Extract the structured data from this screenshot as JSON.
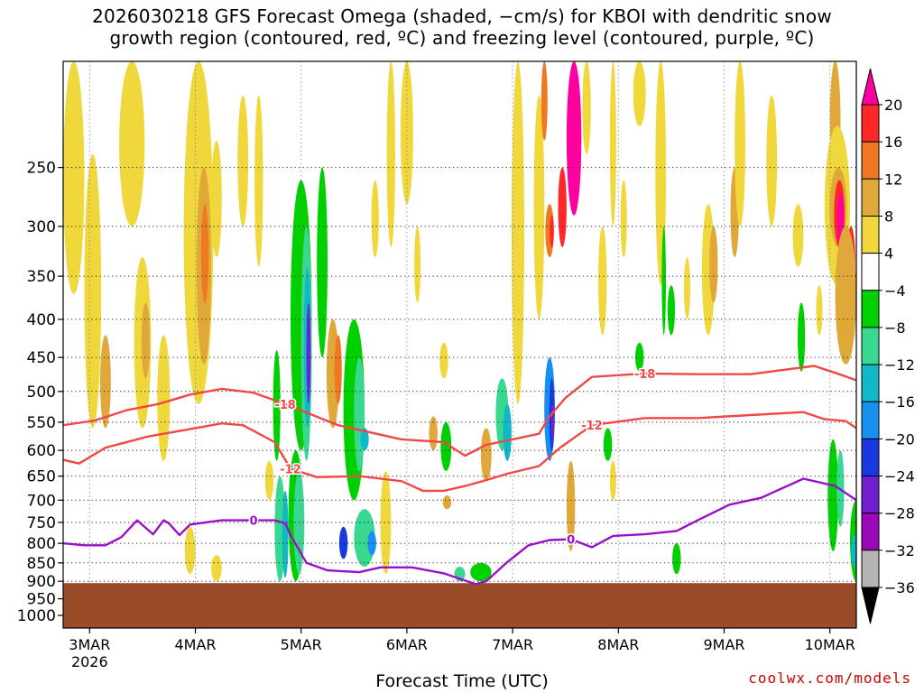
{
  "title": {
    "line1": "2026030218 GFS Forecast Omega (shaded, −cm/s) for KBOI with dendritic snow",
    "line2": "growth region (contoured, red, ºC) and freezing level (contoured, purple, ºC)"
  },
  "xlabel": "Forecast Time (UTC)",
  "credit": "coolwx.com/models",
  "chart_data": {
    "type": "heatmap",
    "y_axis": {
      "ticks": [
        250,
        300,
        350,
        400,
        450,
        500,
        550,
        600,
        650,
        700,
        750,
        800,
        850,
        900,
        950,
        1000
      ],
      "range": [
        180,
        1040
      ],
      "scale": "log"
    },
    "x_axis": {
      "ticks": [
        "3MAR",
        "4MAR",
        "5MAR",
        "6MAR",
        "7MAR",
        "8MAR",
        "9MAR",
        "10MAR"
      ],
      "tick_values": [
        0.25,
        1.25,
        2.25,
        3.25,
        4.25,
        5.25,
        6.25,
        7.25
      ],
      "year_label": "2026",
      "range": [
        0,
        7.5
      ]
    },
    "grid": true,
    "colorbar": {
      "ticks": [
        "20",
        "16",
        "12",
        "8",
        "4",
        "−4",
        "−8",
        "−12",
        "−16",
        "−20",
        "−24",
        "−28",
        "−32",
        "−36"
      ],
      "colors": [
        "#ff00a0",
        "#ff2828",
        "#f07820",
        "#e0a838",
        "#f0d83c",
        "#ffffff",
        "#00d000",
        "#38d890",
        "#10b8c8",
        "#1890f0",
        "#1838e0",
        "#7020d0",
        "#9a08b8",
        "#b4b4b4",
        "#000000"
      ]
    },
    "contours": {
      "dgz_upper_minus18": {
        "label": "-18",
        "color": "#f04848",
        "points": [
          [
            0.0,
            555
          ],
          [
            0.3,
            547
          ],
          [
            0.6,
            530
          ],
          [
            0.9,
            520
          ],
          [
            1.2,
            505
          ],
          [
            1.5,
            496
          ],
          [
            1.8,
            502
          ],
          [
            2.1,
            520
          ],
          [
            2.6,
            555
          ],
          [
            3.2,
            580
          ],
          [
            3.6,
            585
          ],
          [
            3.8,
            610
          ],
          [
            4.0,
            590
          ],
          [
            4.3,
            578
          ],
          [
            4.5,
            570
          ],
          [
            4.6,
            540
          ],
          [
            4.75,
            510
          ],
          [
            5.0,
            478
          ],
          [
            5.5,
            473
          ],
          [
            6.0,
            474
          ],
          [
            6.5,
            474
          ],
          [
            6.9,
            466
          ],
          [
            7.1,
            462
          ],
          [
            7.3,
            472
          ],
          [
            7.5,
            483
          ]
        ]
      },
      "dgz_lower_minus12": {
        "label": "-12",
        "color": "#f04848",
        "points": [
          [
            0.0,
            618
          ],
          [
            0.15,
            625
          ],
          [
            0.4,
            595
          ],
          [
            0.8,
            575
          ],
          [
            1.2,
            562
          ],
          [
            1.5,
            552
          ],
          [
            1.7,
            555
          ],
          [
            2.0,
            585
          ],
          [
            2.15,
            635
          ],
          [
            2.4,
            652
          ],
          [
            2.8,
            650
          ],
          [
            3.2,
            660
          ],
          [
            3.4,
            680
          ],
          [
            3.6,
            680
          ],
          [
            3.8,
            670
          ],
          [
            4.0,
            658
          ],
          [
            4.2,
            645
          ],
          [
            4.5,
            630
          ],
          [
            4.7,
            595
          ],
          [
            5.0,
            555
          ],
          [
            5.5,
            543
          ],
          [
            6.0,
            543
          ],
          [
            6.5,
            538
          ],
          [
            7.0,
            533
          ],
          [
            7.2,
            545
          ],
          [
            7.4,
            548
          ],
          [
            7.5,
            560
          ]
        ]
      },
      "freezing_level_0": {
        "label": "0",
        "color": "#9a10c8",
        "points": [
          [
            0.0,
            800
          ],
          [
            0.2,
            805
          ],
          [
            0.4,
            805
          ],
          [
            0.55,
            785
          ],
          [
            0.7,
            745
          ],
          [
            0.85,
            778
          ],
          [
            0.95,
            745
          ],
          [
            1.0,
            752
          ],
          [
            1.1,
            780
          ],
          [
            1.2,
            755
          ],
          [
            1.5,
            745
          ],
          [
            1.8,
            745
          ],
          [
            2.0,
            745
          ],
          [
            2.1,
            752
          ],
          [
            2.15,
            780
          ],
          [
            2.3,
            850
          ],
          [
            2.5,
            870
          ],
          [
            2.8,
            875
          ],
          [
            3.0,
            862
          ],
          [
            3.3,
            862
          ],
          [
            3.6,
            878
          ],
          [
            3.9,
            908
          ],
          [
            4.0,
            900
          ],
          [
            4.2,
            848
          ],
          [
            4.4,
            805
          ],
          [
            4.6,
            792
          ],
          [
            4.8,
            790
          ],
          [
            5.0,
            810
          ],
          [
            5.2,
            782
          ],
          [
            5.5,
            778
          ],
          [
            5.8,
            770
          ],
          [
            6.0,
            745
          ],
          [
            6.3,
            710
          ],
          [
            6.6,
            695
          ],
          [
            7.0,
            655
          ],
          [
            7.3,
            670
          ],
          [
            7.5,
            700
          ]
        ]
      }
    },
    "terrain": {
      "top_hpa": 905,
      "color": "#9a4c28"
    }
  }
}
